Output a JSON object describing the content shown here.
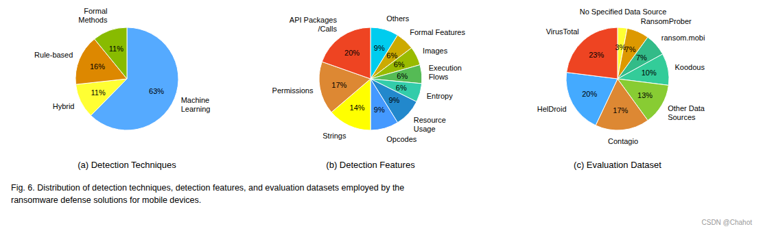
{
  "chart_data": [
    {
      "type": "pie",
      "title": "(a)  Detection Techniques",
      "categories": [
        "Machine\nLearning",
        "Hybrid",
        "Rule-based",
        "Formal\nMethods"
      ],
      "values": [
        63,
        11,
        16,
        11
      ],
      "value_labels": [
        "63%",
        "11%",
        "16%",
        "11%"
      ],
      "colors": [
        "#55aaff",
        "#ffff33",
        "#dd8800",
        "#88bb00"
      ],
      "data_labels": true
    },
    {
      "type": "pie",
      "title": "(b)  Detection Features",
      "categories": [
        "Others",
        "Formal Features",
        "Images",
        "Execution\nFlows",
        "Entropy",
        "Resource\nUsage",
        "Opcodes",
        "Strings",
        "Permissions",
        "API Packages\n/Calls"
      ],
      "values": [
        9,
        6,
        6,
        6,
        6,
        9,
        9,
        14,
        17,
        20
      ],
      "value_labels": [
        "9%",
        "6%",
        "6%",
        "6%",
        "6%",
        "9%",
        "9%",
        "14%",
        "17%",
        "20%"
      ],
      "colors": [
        "#00ccee",
        "#ccaa00",
        "#99bb00",
        "#55bb55",
        "#33ccaa",
        "#2288cc",
        "#4499ff",
        "#ffff00",
        "#dd8833",
        "#ee4422"
      ],
      "data_labels": true
    },
    {
      "type": "pie",
      "title": "(c)  Evaluation Dataset",
      "categories": [
        "No Specified Data Source",
        "RansomProber",
        "ransom.mobi",
        "Koodous",
        "Other Data\nSources",
        "Contagio",
        "HelDroid",
        "VirusTotal"
      ],
      "values": [
        3,
        7,
        7,
        10,
        13,
        17,
        20,
        23
      ],
      "value_labels": [
        "3%",
        "7%",
        "7%",
        "10%",
        "13%",
        "17%",
        "20%",
        "23%"
      ],
      "colors": [
        "#ffff33",
        "#dd9900",
        "#33bb88",
        "#33cc99",
        "#88cc33",
        "#dd8833",
        "#44aaff",
        "#ee4422"
      ],
      "data_labels": true
    }
  ],
  "annotations": [
    "Fig. 6.  Distribution of detection techniques, detection features, and evaluation datasets employed by the",
    "ransomware defense solutions for mobile devices.",
    "CSDN @Chahot"
  ]
}
